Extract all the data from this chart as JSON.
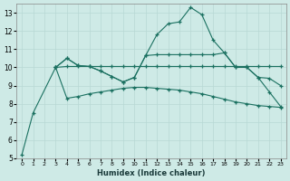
{
  "xlabel": "Humidex (Indice chaleur)",
  "bg_color": "#ceeae6",
  "grid_color": "#b8d8d4",
  "line_color": "#1a7060",
  "xlim": [
    -0.5,
    23.5
  ],
  "ylim": [
    5,
    13.5
  ],
  "yticks": [
    5,
    6,
    7,
    8,
    9,
    10,
    11,
    12,
    13
  ],
  "xticks": [
    0,
    1,
    2,
    3,
    4,
    5,
    6,
    7,
    8,
    9,
    10,
    11,
    12,
    13,
    14,
    15,
    16,
    17,
    18,
    19,
    20,
    21,
    22,
    23
  ],
  "line1_x": [
    0,
    1,
    3,
    4,
    5,
    6,
    7,
    8,
    9,
    10,
    11,
    12,
    13,
    14,
    15,
    16,
    17,
    18,
    19,
    20,
    21,
    22,
    23
  ],
  "line1_y": [
    5.2,
    7.5,
    10.0,
    8.3,
    8.4,
    8.55,
    8.65,
    8.75,
    8.85,
    8.9,
    8.9,
    8.85,
    8.8,
    8.75,
    8.65,
    8.55,
    8.4,
    8.25,
    8.1,
    8.0,
    7.9,
    7.85,
    7.8
  ],
  "line2_x": [
    3,
    4,
    5,
    6,
    7,
    8,
    9,
    10,
    11,
    12,
    13,
    14,
    15,
    16,
    17,
    18,
    19,
    20,
    21,
    22,
    23
  ],
  "line2_y": [
    10.0,
    10.05,
    10.05,
    10.05,
    10.05,
    10.05,
    10.05,
    10.05,
    10.05,
    10.05,
    10.05,
    10.05,
    10.05,
    10.05,
    10.05,
    10.05,
    10.05,
    10.05,
    10.05,
    10.05,
    10.05
  ],
  "line3_x": [
    3,
    4,
    5,
    6,
    7,
    8,
    9,
    10,
    11,
    12,
    13,
    14,
    15,
    16,
    17,
    18,
    19,
    20,
    21,
    22,
    23
  ],
  "line3_y": [
    10.0,
    10.5,
    10.1,
    10.05,
    9.8,
    9.5,
    9.2,
    9.45,
    10.65,
    11.8,
    12.4,
    12.5,
    13.3,
    12.9,
    11.5,
    10.8,
    10.0,
    10.0,
    9.45,
    8.65,
    7.85
  ],
  "line4_x": [
    3,
    4,
    5,
    6,
    7,
    8,
    9,
    10,
    11,
    12,
    13,
    14,
    15,
    16,
    17,
    18,
    19,
    20,
    21,
    22,
    23
  ],
  "line4_y": [
    10.0,
    10.5,
    10.1,
    10.05,
    9.8,
    9.5,
    9.2,
    9.45,
    10.65,
    10.7,
    10.7,
    10.7,
    10.7,
    10.7,
    10.7,
    10.8,
    10.0,
    10.0,
    9.45,
    9.4,
    9.0
  ]
}
